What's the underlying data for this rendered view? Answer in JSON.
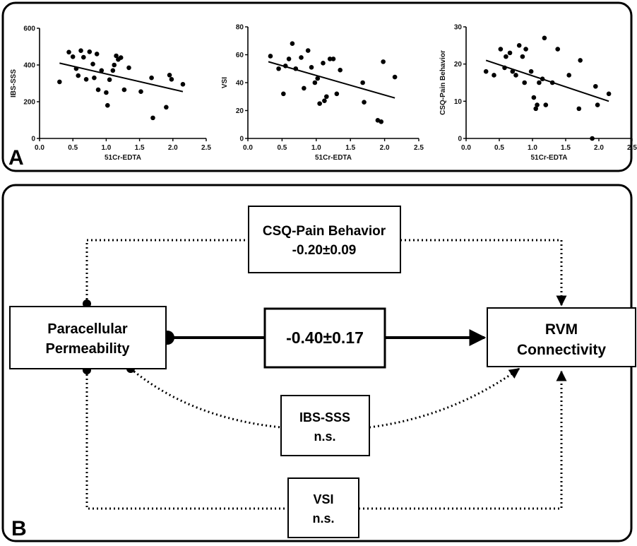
{
  "panel_labels": {
    "a": "A",
    "b": "B"
  },
  "chart_data": [
    {
      "type": "scatter",
      "xlabel": "51Cr-EDTA",
      "ylabel": "IBS-SSS",
      "xlim": [
        0,
        2.5
      ],
      "ylim": [
        0,
        600
      ],
      "xticks": [
        "0.0",
        "0.5",
        "1.0",
        "1.5",
        "2.0",
        "2.5"
      ],
      "yticks": [
        "0",
        "200",
        "400",
        "600"
      ],
      "points": [
        [
          0.3,
          308
        ],
        [
          0.44,
          470
        ],
        [
          0.5,
          445
        ],
        [
          0.55,
          380
        ],
        [
          0.58,
          342
        ],
        [
          0.62,
          478
        ],
        [
          0.66,
          442
        ],
        [
          0.7,
          322
        ],
        [
          0.75,
          472
        ],
        [
          0.8,
          405
        ],
        [
          0.82,
          330
        ],
        [
          0.86,
          460
        ],
        [
          0.88,
          265
        ],
        [
          0.93,
          370
        ],
        [
          1.0,
          250
        ],
        [
          1.02,
          180
        ],
        [
          1.05,
          320
        ],
        [
          1.1,
          370
        ],
        [
          1.12,
          400
        ],
        [
          1.15,
          450
        ],
        [
          1.18,
          430
        ],
        [
          1.22,
          440
        ],
        [
          1.27,
          265
        ],
        [
          1.34,
          385
        ],
        [
          1.52,
          255
        ],
        [
          1.68,
          330
        ],
        [
          1.7,
          112
        ],
        [
          1.9,
          170
        ],
        [
          1.95,
          345
        ],
        [
          1.98,
          322
        ],
        [
          2.15,
          295
        ]
      ],
      "fit": {
        "x": [
          0.3,
          2.15
        ],
        "y": [
          410,
          255
        ]
      }
    },
    {
      "type": "scatter",
      "xlabel": "51Cr-EDTA",
      "ylabel": "VSI",
      "xlim": [
        0,
        2.5
      ],
      "ylim": [
        0,
        80
      ],
      "xticks": [
        "0.0",
        "0.5",
        "1.0",
        "1.5",
        "2.0",
        "2.5"
      ],
      "yticks": [
        "0",
        "20",
        "40",
        "60",
        "80"
      ],
      "points": [
        [
          0.33,
          59
        ],
        [
          0.45,
          50
        ],
        [
          0.52,
          32
        ],
        [
          0.55,
          52
        ],
        [
          0.6,
          57
        ],
        [
          0.65,
          68
        ],
        [
          0.7,
          50
        ],
        [
          0.78,
          58
        ],
        [
          0.82,
          36
        ],
        [
          0.88,
          63
        ],
        [
          0.93,
          51
        ],
        [
          0.98,
          40
        ],
        [
          1.02,
          43
        ],
        [
          1.05,
          25
        ],
        [
          1.1,
          54
        ],
        [
          1.12,
          27
        ],
        [
          1.15,
          30
        ],
        [
          1.2,
          57
        ],
        [
          1.25,
          57
        ],
        [
          1.3,
          32
        ],
        [
          1.35,
          49
        ],
        [
          1.68,
          40
        ],
        [
          1.7,
          26
        ],
        [
          1.9,
          13
        ],
        [
          1.95,
          12
        ],
        [
          1.98,
          55
        ],
        [
          2.15,
          44
        ]
      ],
      "fit": {
        "x": [
          0.3,
          2.15
        ],
        "y": [
          55,
          29
        ]
      }
    },
    {
      "type": "scatter",
      "xlabel": "51Cr-EDTA",
      "ylabel": "CSQ-Pain Behavior",
      "xlim": [
        0,
        2.5
      ],
      "ylim": [
        0,
        30
      ],
      "xticks": [
        "0.0",
        "0.5",
        "1.0",
        "1.5",
        "2.0",
        "2.5"
      ],
      "yticks": [
        "0",
        "10",
        "20",
        "30"
      ],
      "points": [
        [
          0.3,
          18
        ],
        [
          0.42,
          17
        ],
        [
          0.52,
          24
        ],
        [
          0.58,
          19
        ],
        [
          0.6,
          22
        ],
        [
          0.66,
          23
        ],
        [
          0.7,
          18
        ],
        [
          0.75,
          17
        ],
        [
          0.8,
          25
        ],
        [
          0.85,
          22
        ],
        [
          0.88,
          15
        ],
        [
          0.9,
          24
        ],
        [
          0.98,
          18
        ],
        [
          1.02,
          11
        ],
        [
          1.05,
          8
        ],
        [
          1.07,
          9
        ],
        [
          1.1,
          15
        ],
        [
          1.15,
          16
        ],
        [
          1.18,
          27
        ],
        [
          1.2,
          9
        ],
        [
          1.3,
          15
        ],
        [
          1.38,
          24
        ],
        [
          1.55,
          17
        ],
        [
          1.7,
          8
        ],
        [
          1.72,
          21
        ],
        [
          1.9,
          0
        ],
        [
          1.95,
          14
        ],
        [
          1.98,
          9
        ],
        [
          2.15,
          12
        ]
      ],
      "fit": {
        "x": [
          0.3,
          2.15
        ],
        "y": [
          21,
          10
        ]
      }
    }
  ],
  "diagram": {
    "source_label_1": "Paracellular",
    "source_label_2": "Permeability",
    "target_label_1": "RVM",
    "target_label_2": "Connectivity",
    "direct_value": "-0.40±0.17",
    "csq_label": "CSQ-Pain Behavior",
    "csq_value": "-0.20±0.09",
    "ibs_label": "IBS-SSS",
    "ibs_value": "n.s.",
    "vsi_label": "VSI",
    "vsi_value": "n.s."
  }
}
